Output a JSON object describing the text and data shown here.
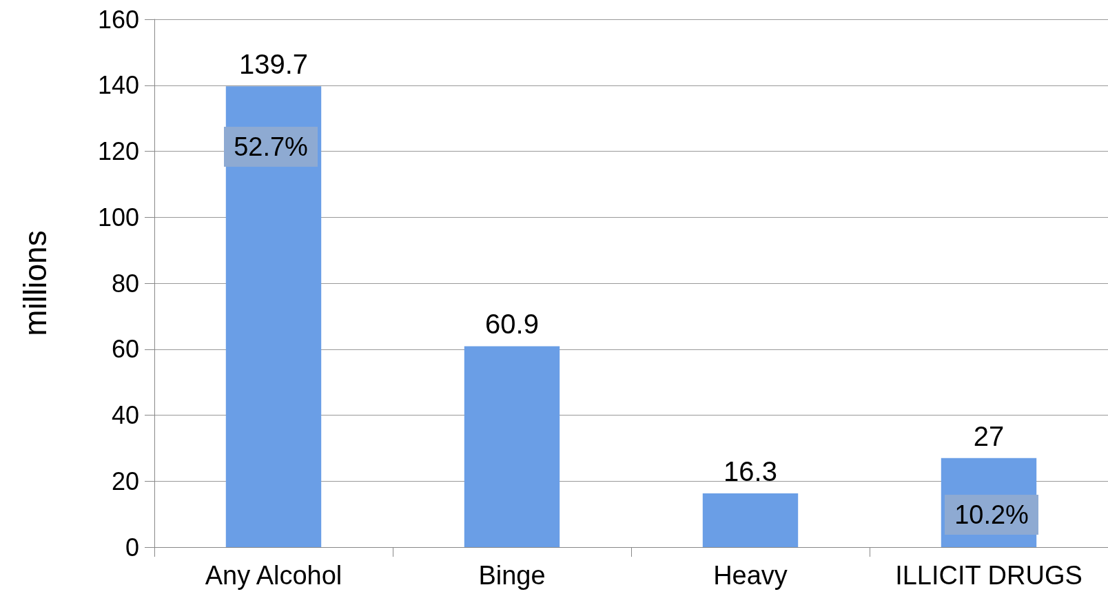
{
  "chart_data": {
    "type": "bar",
    "ylabel": "millions",
    "categories": [
      "Any Alcohol",
      "Binge",
      "Heavy",
      "ILLICIT DRUGS"
    ],
    "values": [
      139.7,
      60.9,
      16.3,
      27
    ],
    "color": "#6a9ee6",
    "ylim": [
      0,
      160
    ],
    "yticks": [
      0,
      20,
      40,
      60,
      80,
      100,
      120,
      140,
      160
    ],
    "grid": "y",
    "data_labels": true,
    "annotations": [
      "52.7%",
      "10.2%"
    ]
  }
}
